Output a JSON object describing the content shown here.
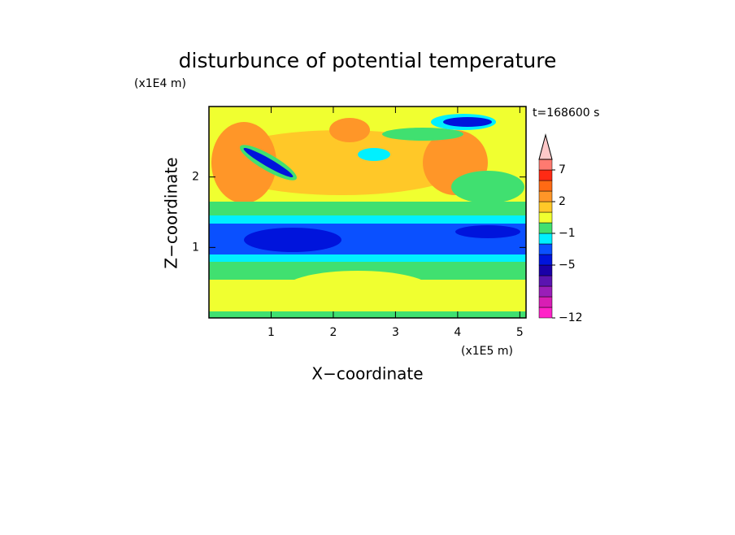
{
  "chart_data": {
    "type": "contour",
    "title": "disturbunce of potential temperature",
    "x_label": "X−coordinate",
    "y_label": "Z−coordinate",
    "x_unit": "(x1E5 m)",
    "y_unit": "(x1E4 m)",
    "annotation": "t=168600 s",
    "xlim": [
      0,
      5.1
    ],
    "ylim": [
      0,
      3
    ],
    "xticks": [
      1,
      2,
      3,
      4,
      5
    ],
    "yticks": [
      1,
      2
    ],
    "colorbar": {
      "levels": [
        -12,
        -10,
        -8,
        -7,
        -6,
        -5,
        -4,
        -2,
        -1,
        0,
        1,
        2,
        3,
        5,
        7,
        9
      ],
      "colors": [
        "#ff22c8",
        "#d81eb4",
        "#9a1eb8",
        "#5a14b0",
        "#1a00a8",
        "#0014dc",
        "#0a50ff",
        "#00f0ff",
        "#40e070",
        "#f0ff30",
        "#ffc828",
        "#ff9628",
        "#ff6a14",
        "#ff2a14",
        "#ff7a70",
        "#ffc8c8"
      ],
      "ticks": [
        {
          "value": -12,
          "label": "−12"
        },
        {
          "value": -5,
          "label": "−5"
        },
        {
          "value": -1,
          "label": "−1"
        },
        2,
        7
      ]
    }
  }
}
